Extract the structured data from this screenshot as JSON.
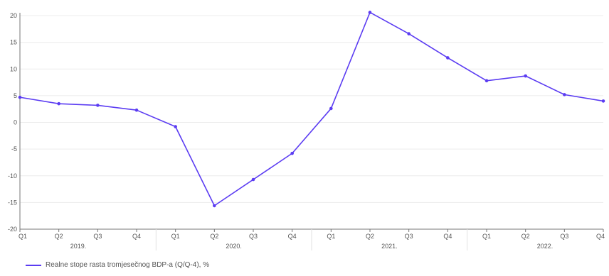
{
  "colors": {
    "series": "#5b3cf2",
    "grid": "#ececec",
    "axis": "#777777",
    "text": "#555555"
  },
  "chart_data": {
    "type": "line",
    "ylim": [
      -20,
      20
    ],
    "yticks": [
      20,
      15,
      10,
      5,
      0,
      -5,
      -10,
      -15,
      -20
    ],
    "ytick_labels": [
      "20",
      "15",
      "10",
      "5",
      "0",
      "-5",
      "-10",
      "-15",
      "-20"
    ],
    "grid": true,
    "legend_position": "bottom-left",
    "categories": [
      "Q1",
      "Q2",
      "Q3",
      "Q4",
      "Q1",
      "Q2",
      "Q3",
      "Q4",
      "Q1",
      "Q2",
      "Q3",
      "Q4",
      "Q1",
      "Q2",
      "Q3",
      "Q4"
    ],
    "year_groups": [
      {
        "label": "2019.",
        "start": 0,
        "end": 3
      },
      {
        "label": "2020.",
        "start": 4,
        "end": 7
      },
      {
        "label": "2021.",
        "start": 8,
        "end": 11
      },
      {
        "label": "2022.",
        "start": 12,
        "end": 15
      }
    ],
    "series": [
      {
        "name": "Realne stope rasta tromjesečnog BDP-a (Q/Q-4), %",
        "values": [
          4.7,
          3.5,
          3.2,
          2.3,
          -0.8,
          -15.6,
          -10.7,
          -5.8,
          2.6,
          20.6,
          16.6,
          12.1,
          7.8,
          8.7,
          5.2,
          4.0
        ]
      }
    ]
  }
}
